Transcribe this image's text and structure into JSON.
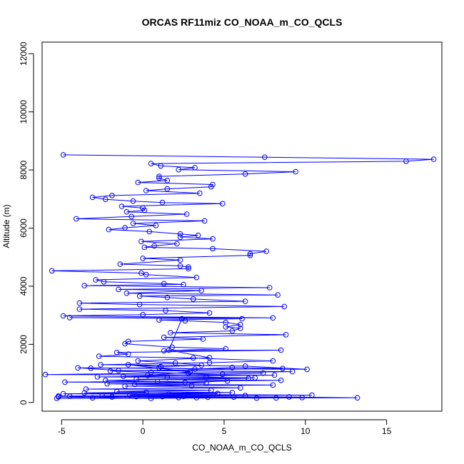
{
  "chart_data": {
    "type": "line",
    "title": "ORCAS RF11miz CO_NOAA_m_CO_QCLS",
    "xlabel": "CO_NOAA_m_CO_QCLS",
    "ylabel": "Altitude (m)",
    "xlim": [
      -6.2,
      18.4
    ],
    "ylim": [
      -300,
      12400
    ],
    "x_ticks": [
      -5,
      0,
      5,
      10,
      15
    ],
    "x_tick_labels": [
      "-5",
      "0",
      "5",
      "10",
      "15"
    ],
    "y_ticks": [
      0,
      2000,
      4000,
      6000,
      8000,
      10000,
      12000
    ],
    "y_tick_labels": [
      "0",
      "2000",
      "4000",
      "6000",
      "8000",
      "10000",
      "12000"
    ],
    "grid": false,
    "marker": "open-circle",
    "color": "#0000ff",
    "series": [
      {
        "points": [
          [
            -4.9,
            8520
          ],
          [
            7.5,
            8440
          ],
          [
            17.9,
            8370
          ],
          [
            16.2,
            8300
          ],
          [
            0.5,
            8220
          ],
          [
            1.1,
            8140
          ],
          [
            3.2,
            8080
          ],
          [
            2.2,
            8010
          ],
          [
            9.4,
            7940
          ],
          [
            6.3,
            7860
          ],
          [
            1.0,
            7780
          ],
          [
            1.0,
            7720
          ],
          [
            1.5,
            7640
          ],
          [
            -0.3,
            7570
          ],
          [
            4.3,
            7500
          ],
          [
            4.2,
            7420
          ],
          [
            1.5,
            7350
          ],
          [
            0.2,
            7290
          ],
          [
            3.5,
            7200
          ],
          [
            -1.9,
            7120
          ],
          [
            -3.1,
            7060
          ],
          [
            -2.3,
            6990
          ],
          [
            -0.6,
            6930
          ],
          [
            1.2,
            6880
          ],
          [
            4.9,
            6840
          ],
          [
            -1.3,
            6750
          ],
          [
            0.0,
            6690
          ],
          [
            0.1,
            6610
          ],
          [
            -1.0,
            6560
          ],
          [
            2.7,
            6480
          ],
          [
            -0.7,
            6400
          ],
          [
            -4.1,
            6320
          ],
          [
            3.8,
            6250
          ],
          [
            -0.6,
            6160
          ],
          [
            0.8,
            6090
          ],
          [
            -1.1,
            6010
          ],
          [
            -2.1,
            5950
          ],
          [
            0.4,
            5880
          ],
          [
            2.3,
            5800
          ],
          [
            3.4,
            5750
          ],
          [
            2.3,
            5690
          ],
          [
            4.3,
            5630
          ],
          [
            -0.1,
            5540
          ],
          [
            2.1,
            5460
          ],
          [
            0.7,
            5390
          ],
          [
            0.1,
            5340
          ],
          [
            4.3,
            5290
          ],
          [
            7.6,
            5200
          ],
          [
            6.6,
            5120
          ],
          [
            6.6,
            5060
          ],
          [
            0.0,
            4960
          ],
          [
            2.3,
            4900
          ],
          [
            -1.4,
            4760
          ],
          [
            2.3,
            4700
          ],
          [
            2.8,
            4660
          ],
          [
            2.8,
            4600
          ],
          [
            -5.6,
            4530
          ],
          [
            -0.1,
            4450
          ],
          [
            0.2,
            4400
          ],
          [
            3.3,
            4300
          ],
          [
            -2.9,
            4220
          ],
          [
            -2.4,
            4150
          ],
          [
            1.3,
            4090
          ],
          [
            2.5,
            4060
          ],
          [
            -3.6,
            4020
          ],
          [
            7.8,
            3950
          ],
          [
            -1.5,
            3890
          ],
          [
            3.6,
            3850
          ],
          [
            -1.0,
            3760
          ],
          [
            8.3,
            3700
          ],
          [
            -0.2,
            3660
          ],
          [
            1.5,
            3610
          ],
          [
            3.1,
            3560
          ],
          [
            6.3,
            3480
          ],
          [
            -3.9,
            3420
          ],
          [
            -0.2,
            3370
          ],
          [
            8.7,
            3300
          ],
          [
            -3.9,
            3210
          ],
          [
            1.4,
            3160
          ],
          [
            4.1,
            3080
          ],
          [
            0.0,
            3020
          ],
          [
            -4.9,
            2980
          ],
          [
            8.0,
            2910
          ],
          [
            -4.5,
            2920
          ],
          [
            6.1,
            2880
          ],
          [
            1.0,
            2840
          ],
          [
            2.6,
            2810
          ],
          [
            5.1,
            2750
          ],
          [
            6.0,
            2680
          ],
          [
            5.1,
            2600
          ],
          [
            6.0,
            2550
          ],
          [
            5.5,
            2460
          ],
          [
            1.7,
            2400
          ],
          [
            8.8,
            2330
          ],
          [
            1.3,
            2240
          ],
          [
            3.7,
            2180
          ],
          [
            -0.9,
            2100
          ],
          [
            -1.1,
            2020
          ],
          [
            1.8,
            1900
          ],
          [
            5.1,
            1850
          ],
          [
            1.3,
            1780
          ],
          [
            8.5,
            1800
          ],
          [
            -1.6,
            1720
          ],
          [
            -0.9,
            1660
          ],
          [
            -2.7,
            1590
          ],
          [
            3.1,
            1530
          ],
          [
            8.0,
            1430
          ],
          [
            4.1,
            1370
          ],
          [
            -2.6,
            1300
          ],
          [
            6.3,
            1250
          ],
          [
            10.1,
            1140
          ],
          [
            -4.0,
            1190
          ],
          [
            -1.5,
            1100
          ],
          [
            9.2,
            1060
          ],
          [
            -6.0,
            960
          ],
          [
            8.1,
            940
          ],
          [
            -2.8,
            880
          ],
          [
            6.9,
            850
          ],
          [
            -0.4,
            800
          ],
          [
            8.5,
            760
          ],
          [
            -4.8,
            700
          ],
          [
            3.9,
            670
          ],
          [
            -2.2,
            640
          ],
          [
            8.0,
            600
          ],
          [
            -1.1,
            560
          ],
          [
            6.0,
            500
          ],
          [
            -3.5,
            460
          ],
          [
            4.2,
            420
          ],
          [
            -1.6,
            380
          ],
          [
            5.5,
            340
          ],
          [
            -4.9,
            300
          ],
          [
            10.4,
            250
          ],
          [
            -5.2,
            220
          ],
          [
            -0.4,
            200
          ],
          [
            9.0,
            190
          ],
          [
            13.2,
            160
          ],
          [
            -5.3,
            140
          ],
          [
            2.2,
            170
          ]
        ]
      },
      {
        "points": [
          [
            -5.2,
            190
          ],
          [
            0.5,
            140
          ],
          [
            4.0,
            180
          ],
          [
            7.0,
            150
          ],
          [
            9.8,
            170
          ],
          [
            -4.5,
            210
          ],
          [
            -3.1,
            160
          ],
          [
            -1.9,
            190
          ],
          [
            1.2,
            200
          ],
          [
            3.3,
            165
          ],
          [
            5.6,
            185
          ],
          [
            8.2,
            155
          ],
          [
            -2.5,
            230
          ],
          [
            2.5,
            210
          ],
          [
            6.3,
            240
          ],
          [
            -0.8,
            260
          ],
          [
            1.6,
            290
          ],
          [
            4.6,
            310
          ],
          [
            -3.6,
            330
          ],
          [
            0.2,
            350
          ]
        ]
      },
      {
        "points": [
          [
            -3.2,
            1180
          ],
          [
            1.0,
            1190
          ],
          [
            3.2,
            1150
          ],
          [
            5.5,
            1200
          ],
          [
            8.6,
            1170
          ],
          [
            -2.0,
            1080
          ],
          [
            0.5,
            1040
          ],
          [
            2.8,
            1000
          ],
          [
            4.9,
            970
          ],
          [
            7.4,
            1010
          ],
          [
            -1.2,
            900
          ],
          [
            1.5,
            860
          ],
          [
            3.9,
            880
          ],
          [
            6.5,
            830
          ],
          [
            -2.3,
            760
          ],
          [
            0.9,
            720
          ],
          [
            2.6,
            690
          ],
          [
            5.2,
            740
          ],
          [
            -0.5,
            620
          ],
          [
            3.0,
            580
          ]
        ]
      },
      {
        "points": [
          [
            2.4,
            2880
          ],
          [
            1.6,
            1800
          ],
          [
            4.1,
            1540
          ],
          [
            -0.3,
            1430
          ],
          [
            2.0,
            1360
          ],
          [
            3.6,
            1280
          ],
          [
            1.1,
            1230
          ],
          [
            -0.9,
            1300
          ],
          [
            2.9,
            1050
          ],
          [
            0.3,
            930
          ]
        ]
      }
    ]
  }
}
